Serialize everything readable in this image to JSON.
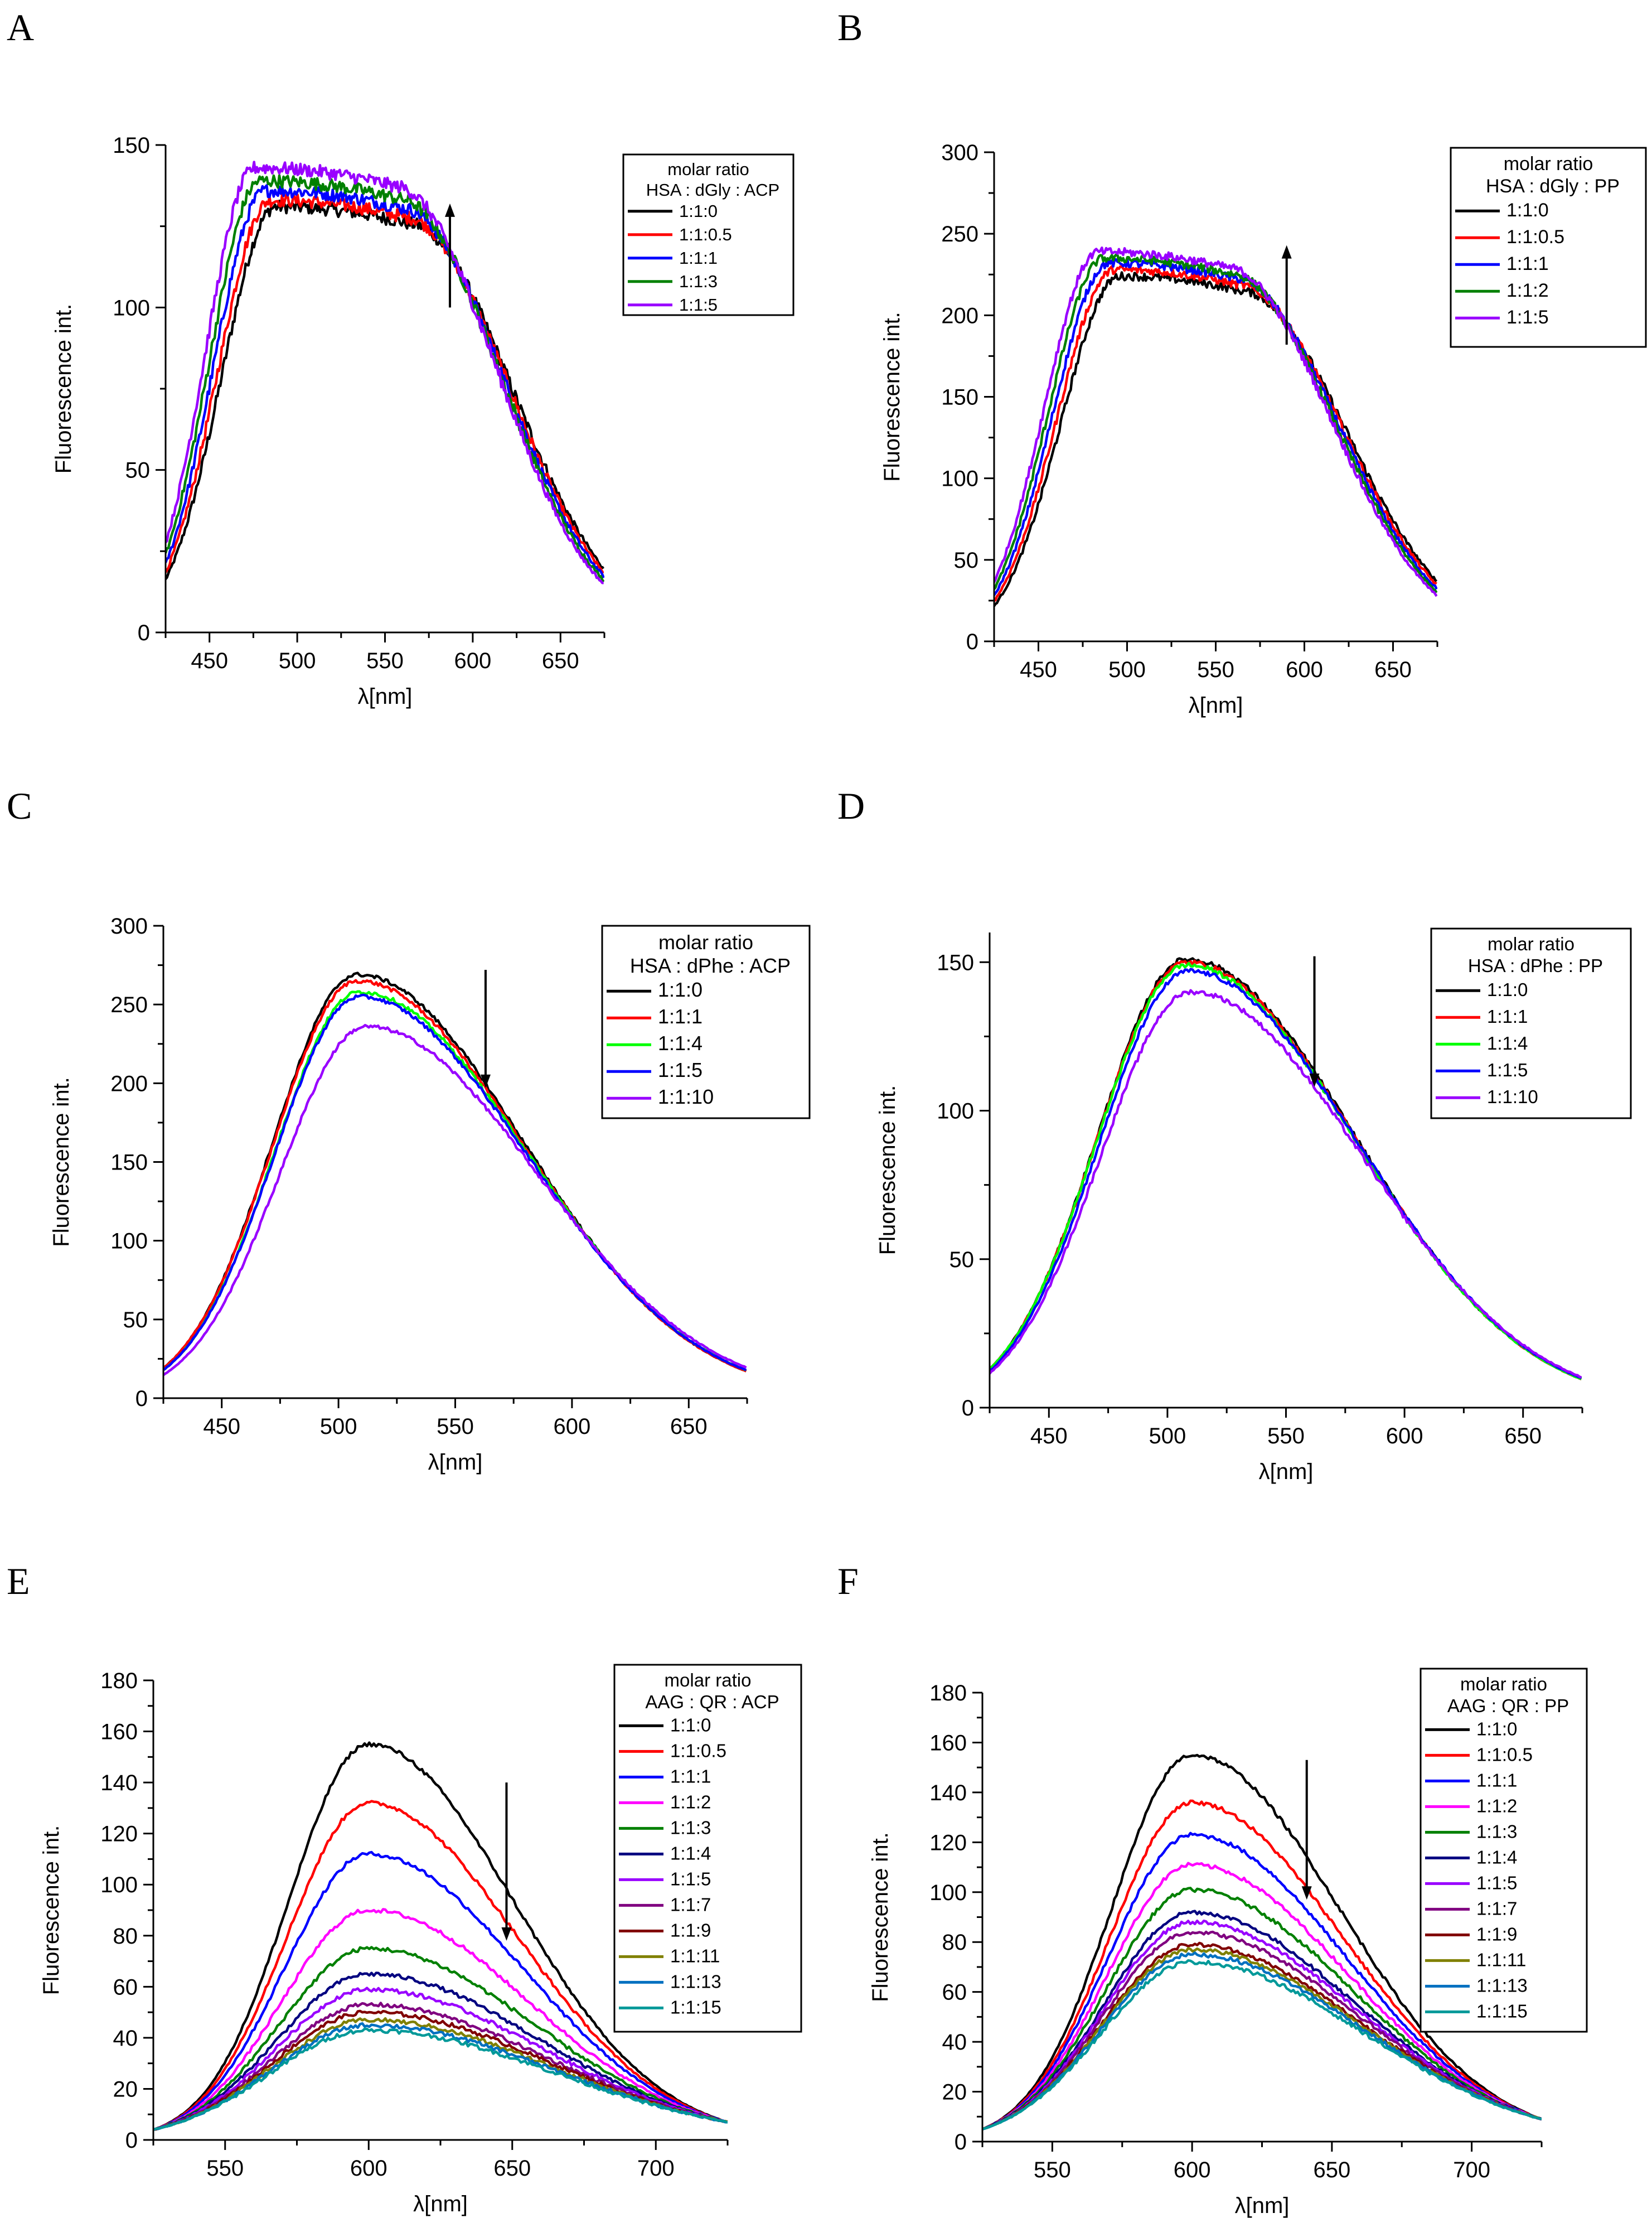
{
  "chart_data": [
    {
      "panel": "A",
      "type": "line",
      "xlabel": "λ[nm]",
      "ylabel": "Fluorescence int.",
      "xlim": [
        425,
        675
      ],
      "ylim": [
        0,
        150
      ],
      "xticks": [
        450,
        500,
        550,
        600,
        650
      ],
      "yticks": [
        0,
        50,
        100,
        150
      ],
      "legend": {
        "title": "molar ratio",
        "subtitle": "HSA : dGly : ACP",
        "placement": "top-right"
      },
      "arrow": {
        "direction": "up",
        "x": 587,
        "y_from": 100,
        "y_to": 132
      },
      "shape": {
        "kind": "plateau",
        "x_rise_start": 425,
        "y_start": 21,
        "x_plateau_start": 482,
        "x_peak": 500,
        "x_plateau_end": 560,
        "y_end": 17,
        "noise": 2.0
      },
      "series": [
        {
          "name": "1:1:0",
          "color": "#000000",
          "peak": 131,
          "shift": 4
        },
        {
          "name": "1:1:0.5",
          "color": "#ff0000",
          "peak": 133,
          "shift": 2
        },
        {
          "name": "1:1:1",
          "color": "#0000ff",
          "peak": 136,
          "shift": 0
        },
        {
          "name": "1:1:3",
          "color": "#008000",
          "peak": 139,
          "shift": -2
        },
        {
          "name": "1:1:5",
          "color": "#9900ff",
          "peak": 143,
          "shift": -4
        }
      ]
    },
    {
      "panel": "B",
      "type": "line",
      "xlabel": "λ[nm]",
      "ylabel": "Fluorescence int.",
      "xlim": [
        425,
        675
      ],
      "ylim": [
        0,
        300
      ],
      "xticks": [
        450,
        500,
        550,
        600,
        650
      ],
      "yticks": [
        0,
        50,
        100,
        150,
        200,
        250,
        300
      ],
      "legend": {
        "title": "molar ratio",
        "subtitle": "HSA : dGly : PP",
        "placement": "top-right"
      },
      "arrow": {
        "direction": "up",
        "x": 590,
        "y_from": 182,
        "y_to": 243
      },
      "shape": {
        "kind": "plateau",
        "x_rise_start": 425,
        "y_start": 28,
        "x_plateau_start": 490,
        "x_peak": 518,
        "x_plateau_end": 560,
        "y_end": 32,
        "noise": 2.5
      },
      "series": [
        {
          "name": "1:1:0",
          "color": "#000000",
          "peak": 224,
          "shift": 4
        },
        {
          "name": "1:1:0.5",
          "color": "#ff0000",
          "peak": 228,
          "shift": 2
        },
        {
          "name": "1:1:1",
          "color": "#0000ff",
          "peak": 232,
          "shift": 0
        },
        {
          "name": "1:1:2",
          "color": "#008000",
          "peak": 235,
          "shift": -2
        },
        {
          "name": "1:1:5",
          "color": "#9900ff",
          "peak": 239,
          "shift": -4
        }
      ]
    },
    {
      "panel": "C",
      "type": "line",
      "xlabel": "λ[nm]",
      "ylabel": "Fluorescence int.",
      "xlim": [
        425,
        675
      ],
      "ylim": [
        0,
        300
      ],
      "xticks": [
        450,
        500,
        550,
        600,
        650
      ],
      "yticks": [
        0,
        50,
        100,
        150,
        200,
        250,
        300
      ],
      "legend": {
        "title": "molar ratio",
        "subtitle": "HSA : dPhe : ACP",
        "placement": "top-right"
      },
      "arrow": {
        "direction": "down",
        "x": 563,
        "y_from": 272,
        "y_to": 197
      },
      "shape": {
        "kind": "peak",
        "x_start": 425,
        "y_start": 19,
        "x_peak": 508,
        "x_end": 675,
        "y_end": 17,
        "noise": 1.2
      },
      "series": [
        {
          "name": "1:1:0",
          "color": "#000000",
          "peak": 269,
          "shift": 0
        },
        {
          "name": "1:1:1",
          "color": "#ff0000",
          "peak": 265,
          "shift": 0
        },
        {
          "name": "1:1:4",
          "color": "#00ff00",
          "peak": 258,
          "shift": 1
        },
        {
          "name": "1:1:5",
          "color": "#0000ff",
          "peak": 255,
          "shift": 1
        },
        {
          "name": "1:1:10",
          "color": "#9900ff",
          "peak": 236,
          "shift": 4
        }
      ]
    },
    {
      "panel": "D",
      "type": "line",
      "xlabel": "λ[nm]",
      "ylabel": "Fluorescence int.",
      "xlim": [
        425,
        675
      ],
      "ylim": [
        0,
        160
      ],
      "xticks": [
        450,
        500,
        550,
        600,
        650
      ],
      "yticks": [
        0,
        50,
        100,
        150
      ],
      "legend": {
        "title": "molar ratio",
        "subtitle": "HSA : dPhe : PP",
        "placement": "top-right"
      },
      "arrow": {
        "direction": "down",
        "x": 562,
        "y_from": 152,
        "y_to": 108
      },
      "shape": {
        "kind": "peak",
        "x_start": 425,
        "y_start": 13,
        "x_peak": 508,
        "x_end": 675,
        "y_end": 9.5,
        "noise": 0.8
      },
      "series": [
        {
          "name": "1:1:0",
          "color": "#000000",
          "peak": 151,
          "shift": 0
        },
        {
          "name": "1:1:1",
          "color": "#ff0000",
          "peak": 150,
          "shift": 0
        },
        {
          "name": "1:1:4",
          "color": "#00ff00",
          "peak": 149,
          "shift": 0
        },
        {
          "name": "1:1:5",
          "color": "#0000ff",
          "peak": 147,
          "shift": 1
        },
        {
          "name": "1:1:10",
          "color": "#9900ff",
          "peak": 140,
          "shift": 2
        }
      ]
    },
    {
      "panel": "E",
      "type": "line",
      "xlabel": "λ[nm]",
      "ylabel": "Fluorescence int.",
      "xlim": [
        525,
        725
      ],
      "ylim": [
        0,
        180
      ],
      "xticks": [
        550,
        600,
        650,
        700
      ],
      "yticks": [
        0,
        20,
        40,
        60,
        80,
        100,
        120,
        140,
        160,
        180
      ],
      "legend": {
        "title": "molar ratio",
        "subtitle": "AAG : QR : ACP",
        "placement": "top-right"
      },
      "arrow": {
        "direction": "down",
        "x": 648,
        "y_from": 140,
        "y_to": 78
      },
      "shape": {
        "kind": "peak",
        "x_start": 525,
        "y_start": 4,
        "x_peak": 600,
        "x_end": 725,
        "y_end": 7,
        "noise": 0.8
      },
      "series": [
        {
          "name": "1:1:0",
          "color": "#000000",
          "peak": 155,
          "shift": 0
        },
        {
          "name": "1:1:0.5",
          "color": "#ff0000",
          "peak": 132,
          "shift": 0
        },
        {
          "name": "1:1:1",
          "color": "#0000ff",
          "peak": 112,
          "shift": 0
        },
        {
          "name": "1:1:2",
          "color": "#ff00ff",
          "peak": 90,
          "shift": 0
        },
        {
          "name": "1:1:3",
          "color": "#008000",
          "peak": 75,
          "shift": 0
        },
        {
          "name": "1:1:4",
          "color": "#000080",
          "peak": 65,
          "shift": 0
        },
        {
          "name": "1:1:5",
          "color": "#9900ff",
          "peak": 59,
          "shift": 0
        },
        {
          "name": "1:1:7",
          "color": "#800080",
          "peak": 53,
          "shift": 0
        },
        {
          "name": "1:1:9",
          "color": "#800000",
          "peak": 50,
          "shift": 0
        },
        {
          "name": "1:1:11",
          "color": "#808000",
          "peak": 47,
          "shift": 0
        },
        {
          "name": "1:1:13",
          "color": "#0070c0",
          "peak": 45,
          "shift": 0
        },
        {
          "name": "1:1:15",
          "color": "#009999",
          "peak": 43,
          "shift": 0
        }
      ]
    },
    {
      "panel": "F",
      "type": "line",
      "xlabel": "λ[nm]",
      "ylabel": "Fluorescence int.",
      "xlim": [
        525,
        725
      ],
      "ylim": [
        0,
        180
      ],
      "xticks": [
        550,
        600,
        650,
        700
      ],
      "yticks": [
        0,
        20,
        40,
        60,
        80,
        100,
        120,
        140,
        160,
        180
      ],
      "legend": {
        "title": "molar ratio",
        "subtitle": "AAG : QR : PP",
        "placement": "top-right"
      },
      "arrow": {
        "direction": "down",
        "x": 641,
        "y_from": 153,
        "y_to": 97
      },
      "shape": {
        "kind": "peak",
        "x_start": 525,
        "y_start": 5,
        "x_peak": 600,
        "x_end": 725,
        "y_end": 9,
        "noise": 0.8
      },
      "series": [
        {
          "name": "1:1:0",
          "color": "#000000",
          "peak": 155,
          "shift": 0
        },
        {
          "name": "1:1:0.5",
          "color": "#ff0000",
          "peak": 136,
          "shift": 0
        },
        {
          "name": "1:1:1",
          "color": "#0000ff",
          "peak": 123,
          "shift": 0
        },
        {
          "name": "1:1:2",
          "color": "#ff00ff",
          "peak": 111,
          "shift": 0
        },
        {
          "name": "1:1:3",
          "color": "#008000",
          "peak": 101,
          "shift": 0
        },
        {
          "name": "1:1:4",
          "color": "#000080",
          "peak": 92,
          "shift": 0
        },
        {
          "name": "1:1:5",
          "color": "#9900ff",
          "peak": 88,
          "shift": 0
        },
        {
          "name": "1:1:7",
          "color": "#800080",
          "peak": 84,
          "shift": 0
        },
        {
          "name": "1:1:9",
          "color": "#800000",
          "peak": 79,
          "shift": 0
        },
        {
          "name": "1:1:11",
          "color": "#808000",
          "peak": 77,
          "shift": 0
        },
        {
          "name": "1:1:13",
          "color": "#0070c0",
          "peak": 75,
          "shift": 0
        },
        {
          "name": "1:1:15",
          "color": "#009999",
          "peak": 72,
          "shift": 0
        }
      ]
    }
  ]
}
